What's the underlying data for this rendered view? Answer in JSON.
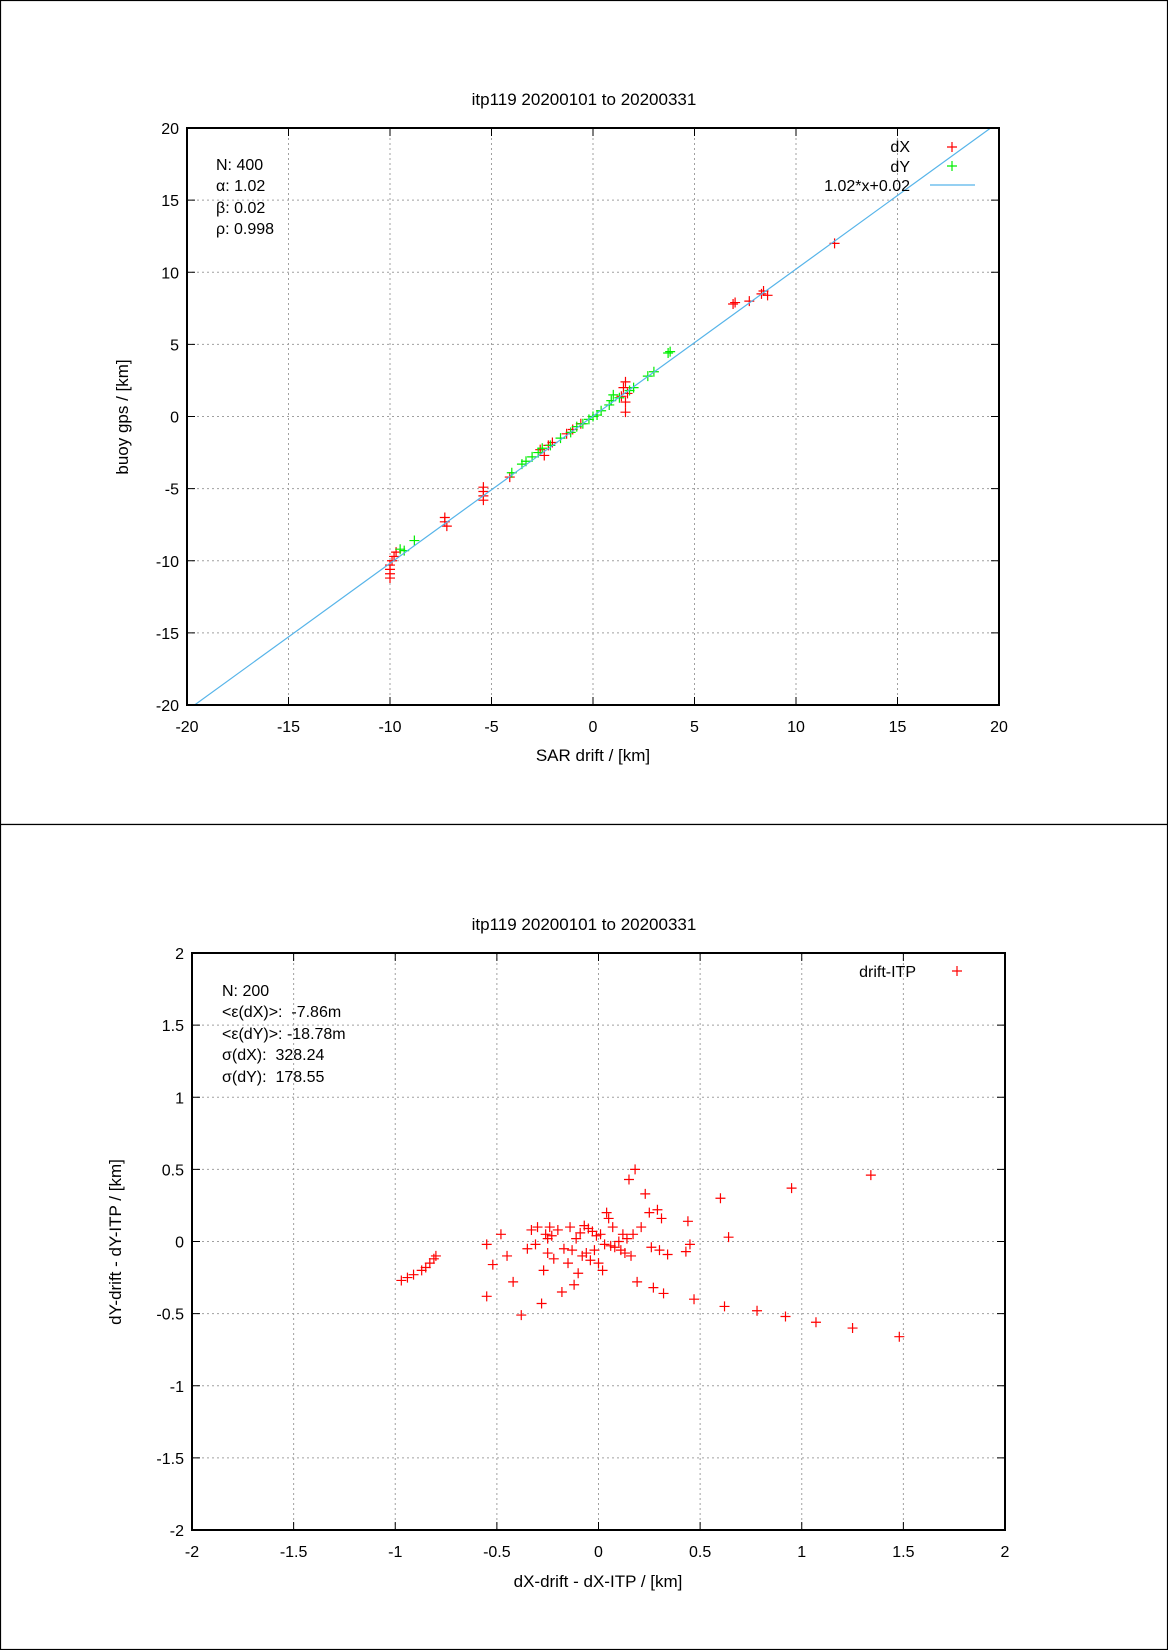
{
  "chart_data": [
    {
      "type": "scatter",
      "title": "itp119 20200101 to 20200331",
      "xlabel": "SAR drift / [km]",
      "ylabel": "buoy gps / [km]",
      "xlim": [
        -20,
        20
      ],
      "ylim": [
        -20,
        20
      ],
      "xticks": [
        -20,
        -15,
        -10,
        -5,
        0,
        5,
        10,
        15,
        20
      ],
      "yticks": [
        -20,
        -15,
        -10,
        -5,
        0,
        5,
        10,
        15,
        20
      ],
      "grid": true,
      "legend_position": "top-right",
      "stats": [
        "N: 400",
        "α: 1.02",
        "β: 0.02",
        "ρ: 0.998"
      ],
      "series": [
        {
          "name": "dX",
          "kind": "points",
          "color": "#ff0000",
          "points": [
            [
              -10,
              -10.3
            ],
            [
              -10,
              -10.6
            ],
            [
              -10,
              -10.9
            ],
            [
              -10,
              -11.2
            ],
            [
              -9.9,
              -10.0
            ],
            [
              -9.8,
              -9.7
            ],
            [
              -9.7,
              -9.4
            ],
            [
              -7.3,
              -7.0
            ],
            [
              -7.3,
              -7.3
            ],
            [
              -7.2,
              -7.6
            ],
            [
              -5.4,
              -4.9
            ],
            [
              -5.4,
              -5.2
            ],
            [
              -5.4,
              -5.5
            ],
            [
              -5.4,
              -5.8
            ],
            [
              -4.1,
              -4.2
            ],
            [
              -2.6,
              -2.3
            ],
            [
              -2.4,
              -2.7
            ],
            [
              -2.2,
              -2.0
            ],
            [
              -2.0,
              -1.8
            ],
            [
              -1.3,
              -1.2
            ],
            [
              -1.0,
              -0.9
            ],
            [
              -0.6,
              -0.5
            ],
            [
              1.4,
              1.4
            ],
            [
              1.5,
              2.0
            ],
            [
              1.6,
              2.4
            ],
            [
              1.6,
              0.3
            ],
            [
              1.6,
              1.0
            ],
            [
              1.7,
              1.6
            ],
            [
              6.9,
              7.8
            ],
            [
              7.0,
              7.9
            ],
            [
              7.7,
              8.0
            ],
            [
              8.3,
              8.5
            ],
            [
              8.4,
              8.7
            ],
            [
              8.6,
              8.4
            ],
            [
              11.9,
              12.0
            ]
          ]
        },
        {
          "name": "dY",
          "kind": "points",
          "color": "#00ee00",
          "points": [
            [
              -9.5,
              -9.2
            ],
            [
              -9.3,
              -9.3
            ],
            [
              -8.8,
              -8.6
            ],
            [
              -4.0,
              -3.9
            ],
            [
              -3.5,
              -3.3
            ],
            [
              -3.3,
              -3.1
            ],
            [
              -3.0,
              -2.8
            ],
            [
              -2.7,
              -2.5
            ],
            [
              -2.5,
              -2.2
            ],
            [
              -2.1,
              -2.0
            ],
            [
              -1.6,
              -1.5
            ],
            [
              -1.1,
              -1.1
            ],
            [
              -0.8,
              -0.7
            ],
            [
              -0.5,
              -0.5
            ],
            [
              -0.2,
              -0.2
            ],
            [
              0.0,
              0.0
            ],
            [
              0.2,
              0.1
            ],
            [
              0.4,
              0.4
            ],
            [
              0.8,
              0.8
            ],
            [
              0.9,
              1.1
            ],
            [
              1.0,
              1.5
            ],
            [
              1.3,
              1.3
            ],
            [
              1.8,
              1.8
            ],
            [
              2.0,
              2.0
            ],
            [
              2.7,
              2.8
            ],
            [
              3.0,
              3.1
            ],
            [
              3.7,
              4.4
            ],
            [
              3.8,
              4.5
            ]
          ]
        },
        {
          "name": "1.02*x+0.02",
          "kind": "line",
          "color": "#56b4e9",
          "slope": 1.02,
          "intercept": 0.02
        }
      ]
    },
    {
      "type": "scatter",
      "title": "itp119 20200101 to 20200331",
      "xlabel": "dX-drift - dX-ITP / [km]",
      "ylabel": "dY-drift - dY-ITP / [km]",
      "xlim": [
        -2,
        2
      ],
      "ylim": [
        -2,
        2
      ],
      "xticks": [
        -2,
        -1.5,
        -1,
        -0.5,
        0,
        0.5,
        1,
        1.5,
        2
      ],
      "yticks": [
        -2,
        -1.5,
        -1,
        -0.5,
        0,
        0.5,
        1,
        1.5,
        2
      ],
      "grid": true,
      "legend_position": "top-right",
      "stats": [
        "N: 200",
        "<ε(dX)>:  -7.86m",
        "<ε(dY)>: -18.78m",
        "σ(dX):  328.24",
        "σ(dY):  178.55"
      ],
      "series": [
        {
          "name": "drift-ITP",
          "kind": "points",
          "color": "#ff0000",
          "points": [
            [
              -0.97,
              -0.27
            ],
            [
              -0.94,
              -0.25
            ],
            [
              -0.91,
              -0.23
            ],
            [
              -0.87,
              -0.2
            ],
            [
              -0.85,
              -0.18
            ],
            [
              -0.83,
              -0.15
            ],
            [
              -0.81,
              -0.12
            ],
            [
              -0.8,
              -0.1
            ],
            [
              -0.55,
              -0.02
            ],
            [
              -0.55,
              -0.38
            ],
            [
              -0.52,
              -0.16
            ],
            [
              -0.48,
              0.05
            ],
            [
              -0.45,
              -0.1
            ],
            [
              -0.42,
              -0.28
            ],
            [
              -0.38,
              -0.51
            ],
            [
              -0.35,
              -0.05
            ],
            [
              -0.33,
              0.08
            ],
            [
              -0.31,
              -0.02
            ],
            [
              -0.3,
              0.1
            ],
            [
              -0.28,
              -0.43
            ],
            [
              -0.27,
              -0.2
            ],
            [
              -0.26,
              0.05
            ],
            [
              -0.25,
              -0.08
            ],
            [
              -0.25,
              0.02
            ],
            [
              -0.24,
              0.1
            ],
            [
              -0.23,
              0.04
            ],
            [
              -0.22,
              -0.12
            ],
            [
              -0.2,
              0.08
            ],
            [
              -0.18,
              -0.35
            ],
            [
              -0.17,
              -0.05
            ],
            [
              -0.15,
              -0.15
            ],
            [
              -0.14,
              0.1
            ],
            [
              -0.13,
              -0.06
            ],
            [
              -0.12,
              -0.3
            ],
            [
              -0.11,
              0.02
            ],
            [
              -0.1,
              -0.22
            ],
            [
              -0.09,
              0.06
            ],
            [
              -0.08,
              -0.1
            ],
            [
              -0.07,
              0.11
            ],
            [
              -0.06,
              -0.08
            ],
            [
              -0.05,
              0.09
            ],
            [
              -0.04,
              -0.13
            ],
            [
              -0.03,
              0.07
            ],
            [
              -0.02,
              -0.06
            ],
            [
              -0.01,
              0.04
            ],
            [
              0.0,
              -0.15
            ],
            [
              0.01,
              0.05
            ],
            [
              0.02,
              -0.2
            ],
            [
              0.03,
              -0.02
            ],
            [
              0.04,
              0.2
            ],
            [
              0.05,
              0.16
            ],
            [
              0.06,
              -0.03
            ],
            [
              0.07,
              0.1
            ],
            [
              0.08,
              -0.04
            ],
            [
              0.1,
              0.0
            ],
            [
              0.11,
              -0.06
            ],
            [
              0.12,
              0.05
            ],
            [
              0.13,
              -0.08
            ],
            [
              0.14,
              0.02
            ],
            [
              0.15,
              0.43
            ],
            [
              0.16,
              -0.1
            ],
            [
              0.17,
              0.05
            ],
            [
              0.18,
              0.5
            ],
            [
              0.19,
              -0.28
            ],
            [
              0.21,
              0.1
            ],
            [
              0.23,
              0.33
            ],
            [
              0.25,
              0.2
            ],
            [
              0.26,
              -0.04
            ],
            [
              0.27,
              -0.32
            ],
            [
              0.29,
              0.22
            ],
            [
              0.3,
              -0.06
            ],
            [
              0.31,
              0.16
            ],
            [
              0.32,
              -0.36
            ],
            [
              0.34,
              -0.09
            ],
            [
              0.43,
              -0.07
            ],
            [
              0.44,
              0.14
            ],
            [
              0.45,
              -0.02
            ],
            [
              0.47,
              -0.4
            ],
            [
              0.6,
              0.3
            ],
            [
              0.62,
              -0.45
            ],
            [
              0.64,
              0.03
            ],
            [
              0.78,
              -0.48
            ],
            [
              0.92,
              -0.52
            ],
            [
              0.95,
              0.37
            ],
            [
              1.07,
              -0.56
            ],
            [
              1.25,
              -0.6
            ],
            [
              1.34,
              0.46
            ],
            [
              1.48,
              -0.66
            ]
          ]
        }
      ]
    }
  ]
}
